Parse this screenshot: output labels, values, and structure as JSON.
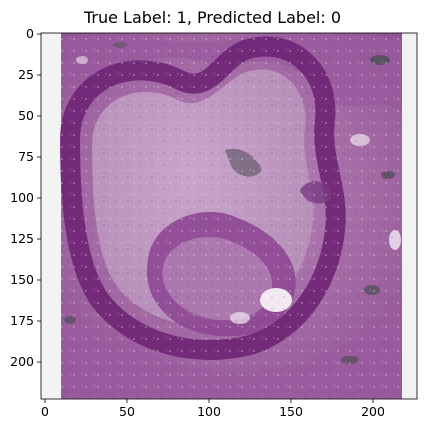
{
  "figure": {
    "title": "True Label: 1, Predicted Label: 0"
  },
  "image_axes": {
    "xticks": [
      "0",
      "50",
      "100",
      "150",
      "200"
    ],
    "yticks": [
      "0",
      "25",
      "50",
      "75",
      "100",
      "125",
      "150",
      "175",
      "200"
    ],
    "grid": false
  },
  "image": {
    "subject": "histology-tissue-patch",
    "stain_colors": [
      "#a567a6",
      "#7a2f7f",
      "#d3b3d5",
      "#f0e5f1",
      "#4a4d4e"
    ]
  }
}
